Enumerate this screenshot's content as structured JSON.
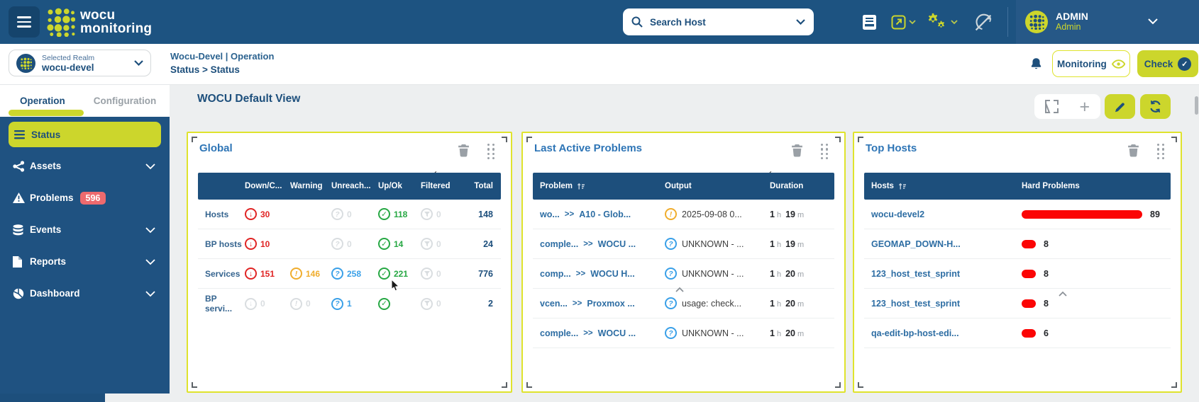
{
  "colors": {
    "accent": "#ccd62c",
    "navy": "#1d4f7c",
    "topbar": "#1d5381",
    "sidebar": "#1f5281",
    "critical": "#e02424",
    "warning": "#f0ad2d",
    "unknown": "#3aa0e8",
    "ok": "#27a844",
    "bar_red": "#fb0505",
    "badge": "#ed6a6e",
    "panel_border": "#dfe32d",
    "title_blue": "#2e75b6"
  },
  "navbar": {
    "brand_line1": "wocu",
    "brand_line2": "monitoring",
    "search_placeholder": "Search Host",
    "user_name": "ADMIN",
    "user_role": "Admin"
  },
  "realm": {
    "label": "Selected Realm",
    "value": "wocu-devel"
  },
  "breadcrumb": {
    "line1": "Wocu-Devel | Operation",
    "line2": "Status > Status"
  },
  "header_actions": {
    "monitoring": "Monitoring",
    "check": "Check"
  },
  "sidebar": {
    "tabs": [
      {
        "label": "Operation"
      },
      {
        "label": "Configuration"
      }
    ],
    "items": [
      {
        "label": "Status"
      },
      {
        "label": "Assets"
      },
      {
        "label": "Problems",
        "badge": "596"
      },
      {
        "label": "Events"
      },
      {
        "label": "Reports"
      },
      {
        "label": "Dashboard"
      }
    ]
  },
  "view": {
    "title": "WOCU Default View"
  },
  "units": {
    "h": "h",
    "m": "m"
  },
  "panels": {
    "global": {
      "title": "Global",
      "columns": [
        "Down/C...",
        "Warning",
        "Unreach...",
        "Up/Ok",
        "Filtered",
        "Total"
      ],
      "rows": [
        {
          "label": "Hosts",
          "down": "30",
          "warning": "",
          "unreach": "0",
          "upok": "118",
          "filtered": "0",
          "total": "148"
        },
        {
          "label": "BP hosts",
          "down": "10",
          "warning": "",
          "unreach": "0",
          "upok": "14",
          "filtered": "0",
          "total": "24"
        },
        {
          "label": "Services",
          "down": "151",
          "warning": "146",
          "unreach": "258",
          "upok": "221",
          "filtered": "0",
          "total": "776"
        },
        {
          "label": "BP servi...",
          "down": "0",
          "warning": "0",
          "unreach": "1",
          "upok": "",
          "filtered": "0",
          "total": "2"
        }
      ]
    },
    "problems": {
      "title": "Last Active Problems",
      "columns": [
        "Problem",
        "Output",
        "Duration"
      ],
      "sep": ">>",
      "rows": [
        {
          "host": "wo...",
          "service": "A10 - Glob...",
          "output": "2025-09-08 0...",
          "dh": "1",
          "dm": "19"
        },
        {
          "host": "comple...",
          "service": "WOCU ...",
          "output": "UNKNOWN - ...",
          "dh": "1",
          "dm": "19"
        },
        {
          "host": "comp...",
          "service": "WOCU H...",
          "output": "UNKNOWN - ...",
          "dh": "1",
          "dm": "20"
        },
        {
          "host": "vcen...",
          "service": "Proxmox ...",
          "output": "usage: check...",
          "dh": "1",
          "dm": "20"
        },
        {
          "host": "comple...",
          "service": "WOCU ...",
          "output": "UNKNOWN - ...",
          "dh": "1",
          "dm": "20"
        }
      ]
    },
    "top_hosts": {
      "title": "Top Hosts",
      "columns": [
        "Hosts",
        "Hard Problems"
      ],
      "rows": [
        {
          "host": "wocu-devel2",
          "value": "89"
        },
        {
          "host": "GEOMAP_DOWN-H...",
          "value": "8"
        },
        {
          "host": "123_host_test_sprint",
          "value": "8"
        },
        {
          "host": "123_host_test_sprint",
          "value": "8"
        },
        {
          "host": "qa-edit-bp-host-edi...",
          "value": "6"
        }
      ]
    }
  }
}
